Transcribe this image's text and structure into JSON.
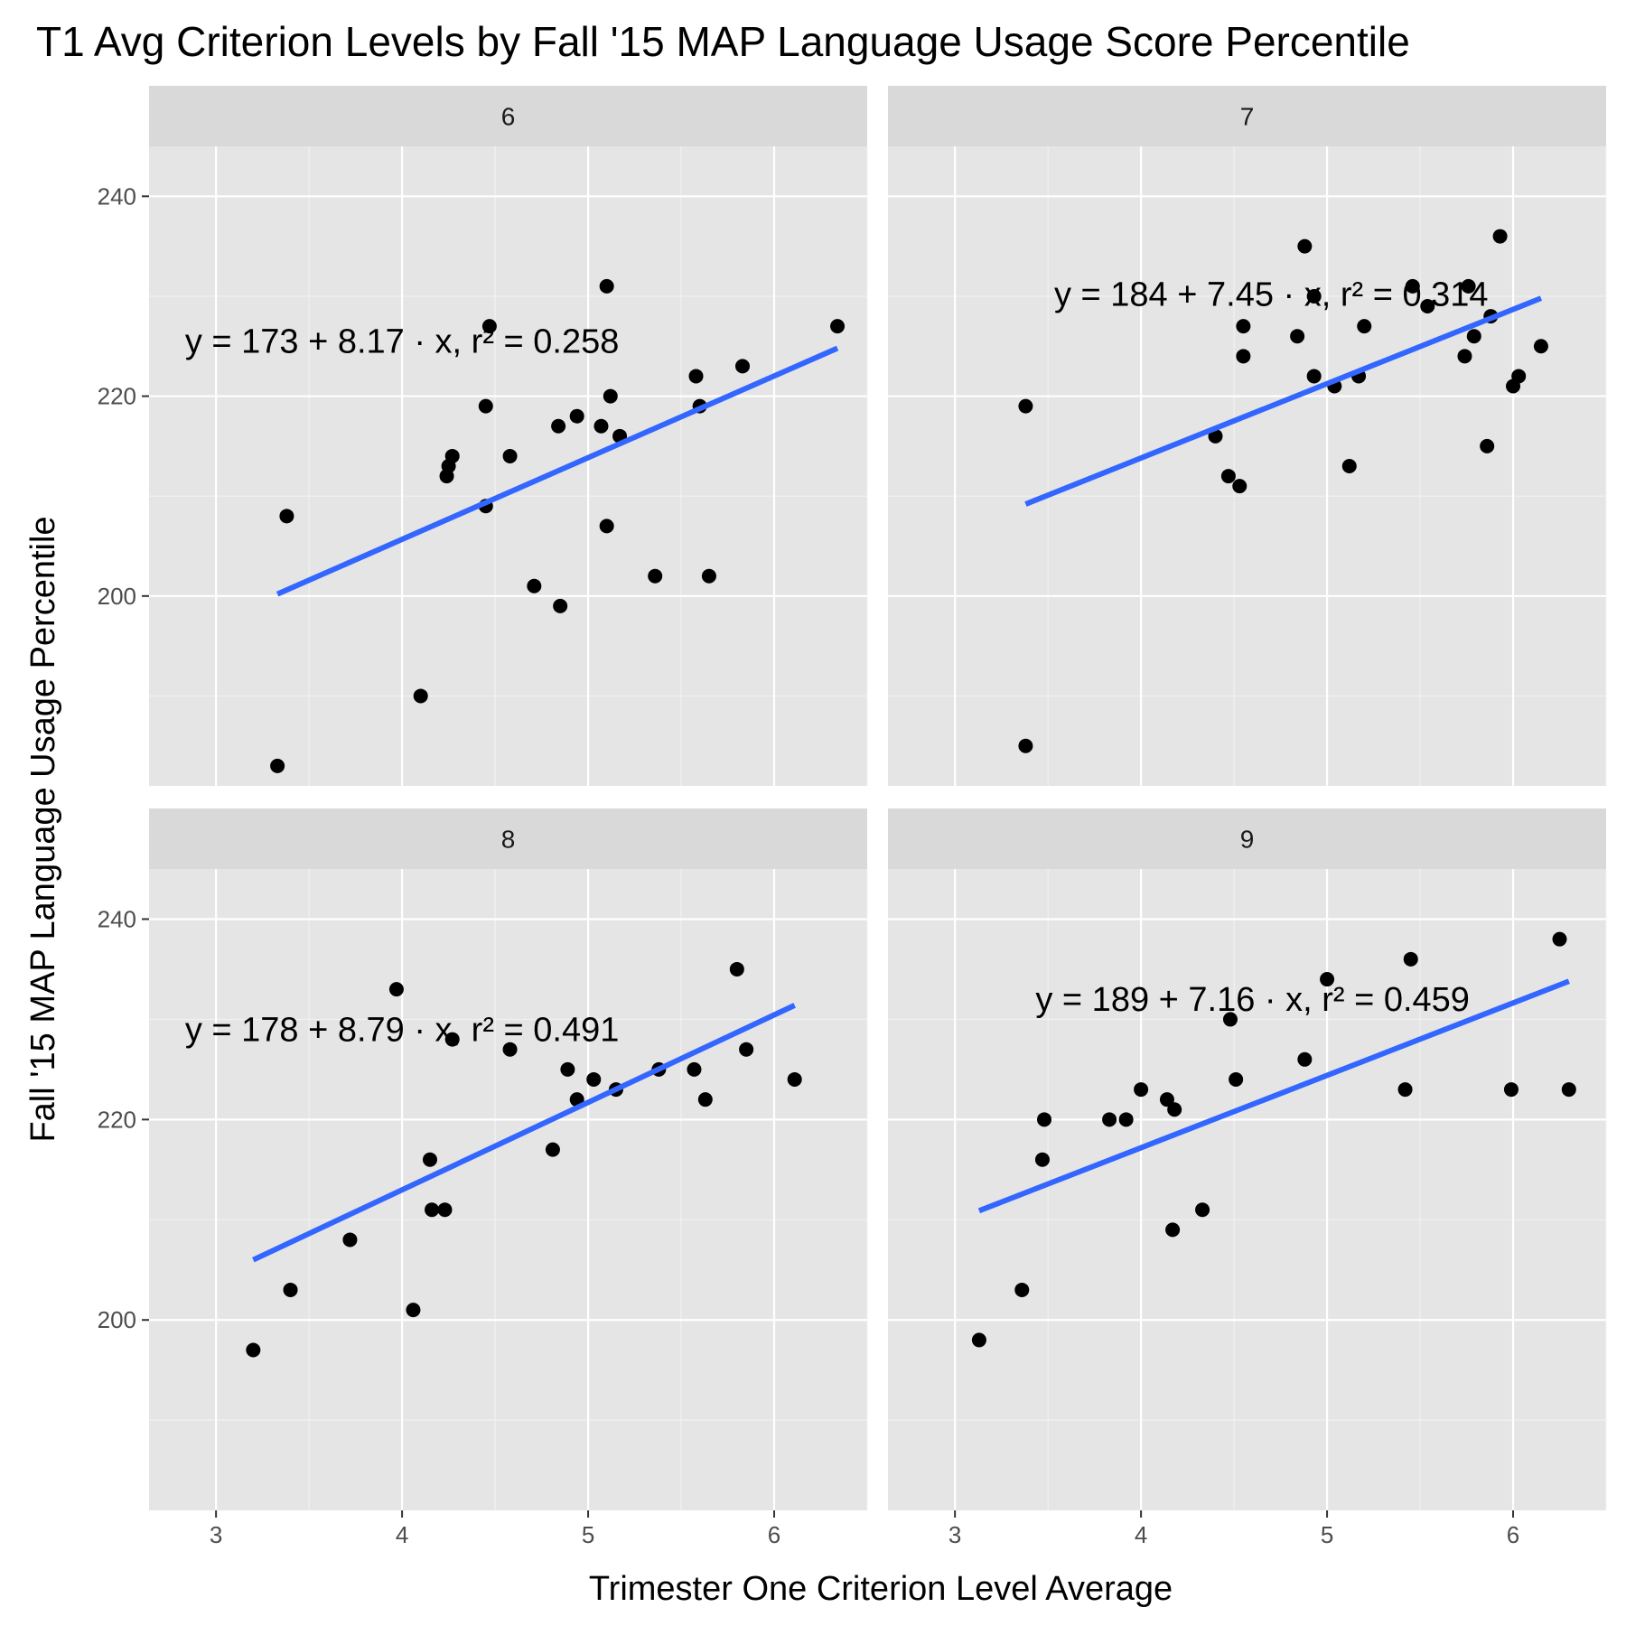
{
  "chart_data": {
    "type": "scatter",
    "title": "T1 Avg Criterion Levels by Fall '15 MAP Language Usage Score Percentile",
    "xlabel": "Trimester One Criterion Level Average",
    "ylabel": "Fall '15 MAP Language Usage Percentile",
    "xlim": [
      2.64,
      6.5
    ],
    "ylim": [
      181,
      245
    ],
    "x_ticks": [
      3,
      4,
      5,
      6
    ],
    "y_ticks": [
      200,
      220,
      240
    ],
    "grid": true,
    "colors": {
      "points": "#000000",
      "fit_line": "#3366ff",
      "panel": "#e5e5e5",
      "strip": "#d9d9d9"
    },
    "facets": [
      {
        "label": "6",
        "equation": "y = 173 + 8.17 · x,  r² = 0.258",
        "eq_pos": [
          4.0,
          225.5
        ],
        "fit": {
          "x": [
            3.33,
            6.34
          ],
          "y": [
            200.2,
            224.8
          ]
        },
        "points": [
          [
            3.33,
            183
          ],
          [
            3.38,
            208
          ],
          [
            4.1,
            190
          ],
          [
            4.24,
            212
          ],
          [
            4.25,
            213
          ],
          [
            4.27,
            214
          ],
          [
            4.45,
            219
          ],
          [
            4.47,
            227
          ],
          [
            4.45,
            209
          ],
          [
            4.58,
            214
          ],
          [
            4.71,
            201
          ],
          [
            4.84,
            217
          ],
          [
            4.85,
            199
          ],
          [
            4.94,
            218
          ],
          [
            5.07,
            217
          ],
          [
            5.1,
            207
          ],
          [
            5.12,
            220
          ],
          [
            5.1,
            231
          ],
          [
            5.17,
            216
          ],
          [
            5.36,
            202
          ],
          [
            5.58,
            222
          ],
          [
            5.6,
            219
          ],
          [
            5.65,
            202
          ],
          [
            5.83,
            223
          ],
          [
            6.34,
            227
          ]
        ]
      },
      {
        "label": "7",
        "equation": "y = 184 + 7.45 · x,  r² = 0.314",
        "eq_pos": [
          4.7,
          230.2
        ],
        "fit": {
          "x": [
            3.38,
            6.15
          ],
          "y": [
            209.2,
            229.8
          ]
        },
        "points": [
          [
            3.38,
            219
          ],
          [
            3.38,
            185
          ],
          [
            4.4,
            216
          ],
          [
            4.47,
            212
          ],
          [
            4.53,
            211
          ],
          [
            4.55,
            227
          ],
          [
            4.55,
            224
          ],
          [
            4.84,
            226
          ],
          [
            4.88,
            235
          ],
          [
            4.93,
            230
          ],
          [
            4.93,
            222
          ],
          [
            5.04,
            221
          ],
          [
            5.12,
            213
          ],
          [
            5.17,
            222
          ],
          [
            5.2,
            227
          ],
          [
            5.46,
            231
          ],
          [
            5.54,
            229
          ],
          [
            5.74,
            224
          ],
          [
            5.76,
            231
          ],
          [
            5.79,
            226
          ],
          [
            5.86,
            215
          ],
          [
            5.88,
            228
          ],
          [
            5.93,
            236
          ],
          [
            6.0,
            221
          ],
          [
            6.03,
            222
          ],
          [
            6.15,
            225
          ]
        ]
      },
      {
        "label": "8",
        "equation": "y = 178 + 8.79 · x,  r² = 0.491",
        "eq_pos": [
          4.0,
          229
        ],
        "fit": {
          "x": [
            3.2,
            6.11
          ],
          "y": [
            206.0,
            231.4
          ]
        },
        "points": [
          [
            3.2,
            197
          ],
          [
            3.4,
            203
          ],
          [
            3.72,
            208
          ],
          [
            3.97,
            233
          ],
          [
            4.06,
            201
          ],
          [
            4.15,
            216
          ],
          [
            4.16,
            211
          ],
          [
            4.23,
            211
          ],
          [
            4.27,
            228
          ],
          [
            4.58,
            227
          ],
          [
            4.81,
            217
          ],
          [
            4.89,
            225
          ],
          [
            4.94,
            222
          ],
          [
            5.03,
            224
          ],
          [
            5.15,
            223
          ],
          [
            5.38,
            225
          ],
          [
            5.57,
            225
          ],
          [
            5.63,
            222
          ],
          [
            5.8,
            235
          ],
          [
            5.85,
            227
          ],
          [
            6.11,
            224
          ]
        ]
      },
      {
        "label": "9",
        "equation": "y = 189 + 7.16 · x,  r² = 0.459",
        "eq_pos": [
          4.6,
          232
        ],
        "fit": {
          "x": [
            3.13,
            6.3
          ],
          "y": [
            210.9,
            233.8
          ]
        },
        "points": [
          [
            3.13,
            198
          ],
          [
            3.36,
            203
          ],
          [
            3.47,
            216
          ],
          [
            3.48,
            220
          ],
          [
            3.83,
            220
          ],
          [
            3.92,
            220
          ],
          [
            4.0,
            223
          ],
          [
            4.14,
            222
          ],
          [
            4.18,
            221
          ],
          [
            4.17,
            209
          ],
          [
            4.33,
            211
          ],
          [
            4.48,
            230
          ],
          [
            4.51,
            224
          ],
          [
            4.88,
            226
          ],
          [
            5.0,
            234
          ],
          [
            5.42,
            223
          ],
          [
            5.45,
            236
          ],
          [
            5.99,
            223
          ],
          [
            6.25,
            238
          ],
          [
            6.3,
            223
          ]
        ]
      }
    ]
  }
}
